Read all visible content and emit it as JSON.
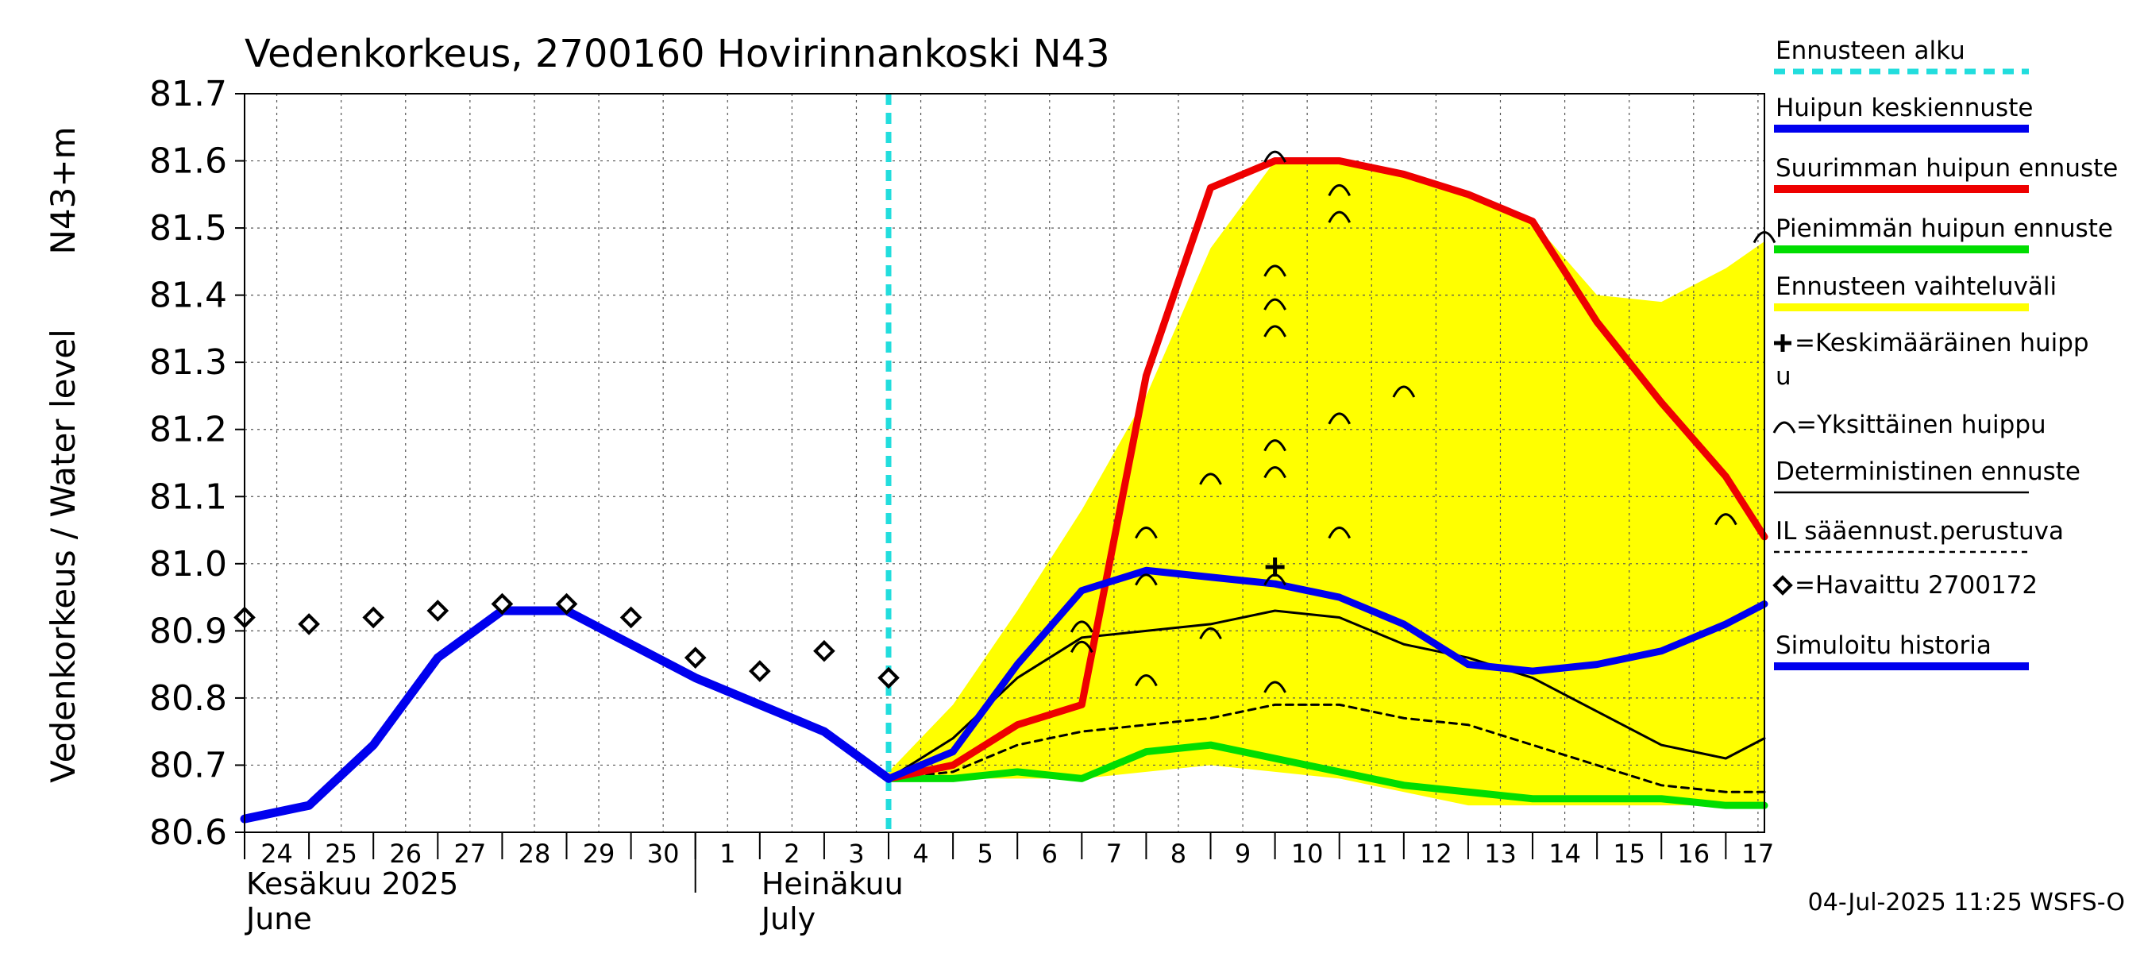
{
  "chart_data": {
    "type": "line",
    "title": "Vedenkorkeus, 2700160 Hovirinnankoski N43",
    "ylabel_left": "Vedenkorkeus / Water level",
    "ylabel_right": "N43+m",
    "ylim": [
      80.6,
      81.7
    ],
    "yticks": [
      "80.6",
      "80.7",
      "80.8",
      "80.9",
      "81.0",
      "81.1",
      "81.2",
      "81.3",
      "81.4",
      "81.5",
      "81.6",
      "81.7"
    ],
    "xlim": [
      0,
      23.6
    ],
    "xticks": [
      "24",
      "25",
      "26",
      "27",
      "28",
      "29",
      "30",
      "1",
      "2",
      "3",
      "4",
      "5",
      "6",
      "7",
      "8",
      "9",
      "10",
      "11",
      "12",
      "13",
      "14",
      "15",
      "16",
      "17"
    ],
    "month_labels": [
      {
        "line1": "Kesäkuu   2025",
        "line2": "June",
        "x": 0
      },
      {
        "line1": "Heinäkuu",
        "line2": "July",
        "x": 8
      }
    ],
    "month_separator_x": 7,
    "forecast_start_x": 10,
    "grid": true,
    "legend_position": "right",
    "legend": [
      {
        "label": "Ennusteen alku",
        "style": "dashed",
        "color": "#22dddd"
      },
      {
        "label": "Huipun keskiennuste",
        "style": "line",
        "color": "#0000ee"
      },
      {
        "label": "Suurimman huipun ennuste",
        "style": "line",
        "color": "#ee0000"
      },
      {
        "label": "Pienimmän huipun ennuste",
        "style": "line",
        "color": "#00dd00"
      },
      {
        "label": "Ennusteen vaihteluväli",
        "style": "line",
        "color": "#ffff00"
      },
      {
        "label": "=Keskimääräinen huipp",
        "label2": "u",
        "style": "plus",
        "color": "#000000"
      },
      {
        "label": "=Yksittäinen huippu",
        "style": "arc",
        "color": "#000000"
      },
      {
        "label": "Deterministinen ennuste",
        "style": "thin",
        "color": "#000000"
      },
      {
        "label": "IL sääennust.perustuva",
        "style": "dotted",
        "color": "#000000"
      },
      {
        "label": "=Havaittu 2700172",
        "style": "diamond",
        "color": "#000000"
      },
      {
        "label": "Simuloitu historia",
        "style": "line",
        "color": "#0000ee"
      }
    ],
    "series": {
      "range_upper": {
        "x": [
          10,
          11,
          12,
          13,
          14,
          15,
          16,
          17,
          18,
          19,
          20,
          21,
          22,
          23,
          23.6
        ],
        "y": [
          80.69,
          80.79,
          80.93,
          81.08,
          81.25,
          81.47,
          81.6,
          81.6,
          81.58,
          81.55,
          81.51,
          81.4,
          81.39,
          81.44,
          81.48
        ]
      },
      "range_lower": {
        "x": [
          10,
          11,
          12,
          13,
          14,
          15,
          16,
          17,
          18,
          19,
          20,
          21,
          22,
          23,
          23.6
        ],
        "y": [
          80.68,
          80.68,
          80.68,
          80.68,
          80.69,
          80.7,
          80.69,
          80.68,
          80.66,
          80.64,
          80.64,
          80.64,
          80.64,
          80.64,
          80.64
        ]
      },
      "simulated_history": {
        "x": [
          0,
          1,
          2,
          3,
          4,
          5,
          6,
          7,
          8,
          9,
          10
        ],
        "y": [
          80.62,
          80.64,
          80.73,
          80.86,
          80.93,
          80.93,
          80.88,
          80.83,
          80.79,
          80.75,
          80.68
        ]
      },
      "mean_peak_forecast": {
        "x": [
          10,
          11,
          12,
          13,
          14,
          15,
          16,
          17,
          18,
          19,
          20,
          21,
          22,
          23,
          23.6
        ],
        "y": [
          80.68,
          80.72,
          80.85,
          80.96,
          80.99,
          80.98,
          80.97,
          80.95,
          80.91,
          80.85,
          80.84,
          80.85,
          80.87,
          80.91,
          80.94
        ]
      },
      "max_peak_forecast": {
        "x": [
          10,
          11,
          12,
          13,
          14,
          15,
          16,
          17,
          18,
          19,
          20,
          21,
          22,
          23,
          23.6
        ],
        "y": [
          80.68,
          80.7,
          80.76,
          80.79,
          81.28,
          81.56,
          81.6,
          81.6,
          81.58,
          81.55,
          81.51,
          81.36,
          81.24,
          81.13,
          81.04
        ]
      },
      "min_peak_forecast": {
        "x": [
          10,
          11,
          12,
          13,
          14,
          15,
          16,
          17,
          18,
          19,
          20,
          21,
          22,
          23,
          23.6
        ],
        "y": [
          80.68,
          80.68,
          80.69,
          80.68,
          80.72,
          80.73,
          80.71,
          80.69,
          80.67,
          80.66,
          80.65,
          80.65,
          80.65,
          80.64,
          80.64
        ]
      },
      "deterministic": {
        "x": [
          10,
          11,
          12,
          13,
          14,
          15,
          16,
          17,
          18,
          19,
          20,
          21,
          22,
          23,
          23.6
        ],
        "y": [
          80.68,
          80.74,
          80.83,
          80.89,
          80.9,
          80.91,
          80.93,
          80.92,
          80.88,
          80.86,
          80.83,
          80.78,
          80.73,
          80.71,
          80.74
        ]
      },
      "weather_based": {
        "x": [
          10,
          11,
          12,
          13,
          14,
          15,
          16,
          17,
          18,
          19,
          20,
          21,
          22,
          23,
          23.6
        ],
        "y": [
          80.68,
          80.69,
          80.73,
          80.75,
          80.76,
          80.77,
          80.79,
          80.79,
          80.77,
          80.76,
          80.73,
          80.7,
          80.67,
          80.66,
          80.66
        ]
      },
      "observed": {
        "x": [
          0,
          1,
          2,
          3,
          4,
          5,
          6,
          7,
          8,
          9,
          10
        ],
        "y": [
          80.92,
          80.91,
          80.92,
          80.93,
          80.94,
          80.94,
          80.92,
          80.86,
          80.84,
          80.87,
          80.83
        ]
      },
      "individual_peaks": {
        "x": [
          13,
          13,
          14,
          14,
          14,
          15,
          15,
          16,
          16,
          16,
          16,
          16,
          16,
          16,
          16,
          17,
          17,
          17,
          17,
          18,
          23,
          23.6
        ],
        "y": [
          80.91,
          80.88,
          81.05,
          80.98,
          80.83,
          81.13,
          80.9,
          81.61,
          81.44,
          81.39,
          81.35,
          81.18,
          81.14,
          80.98,
          80.82,
          81.56,
          81.52,
          81.22,
          81.05,
          81.26,
          81.07,
          81.49
        ]
      },
      "mean_peak_marker": {
        "x": 16,
        "y": 80.995
      }
    }
  },
  "footer": "04-Jul-2025 11:25 WSFS-O"
}
